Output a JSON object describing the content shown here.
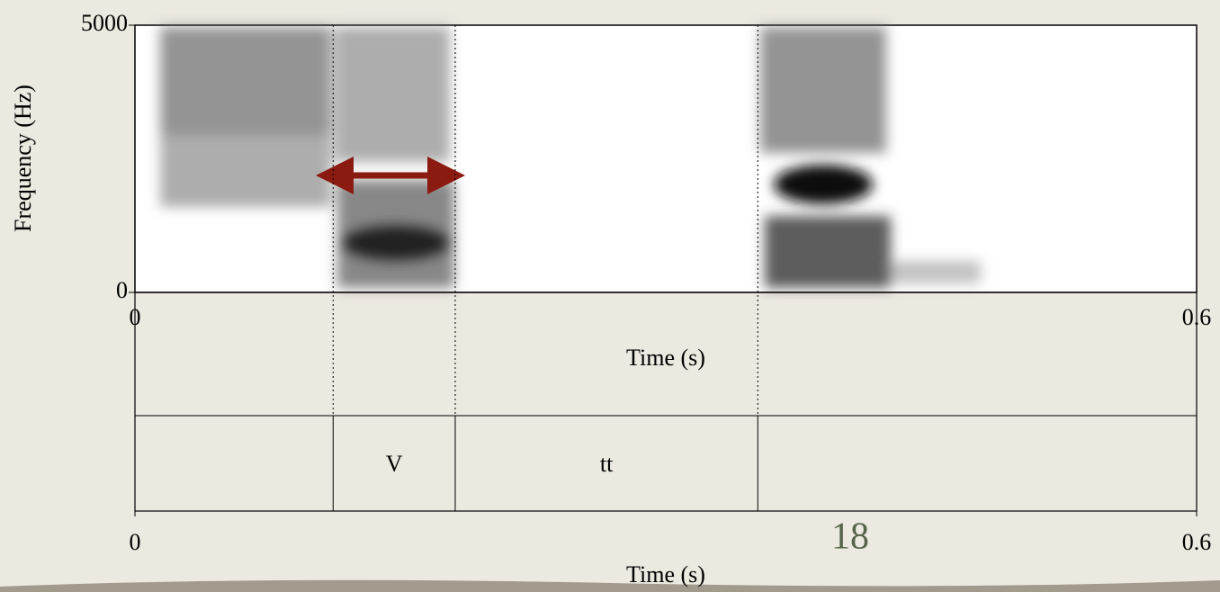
{
  "chart_data": {
    "type": "spectrogram",
    "ylabel": "Frequency (Hz)",
    "ylim": [
      0,
      5000
    ],
    "yticks": [
      0,
      5000
    ],
    "xlabel": "Time (s)",
    "xlim": [
      0,
      0.6
    ],
    "xticks": [
      0,
      0.6
    ],
    "textgrid": {
      "xlim": [
        0,
        0.6
      ],
      "xticks": [
        0,
        0.6
      ],
      "xlabel": "Time (s)",
      "boundaries": [
        0.112,
        0.181,
        0.352
      ],
      "labels": [
        null,
        "V",
        "tt",
        null
      ]
    }
  },
  "page_number": "18"
}
